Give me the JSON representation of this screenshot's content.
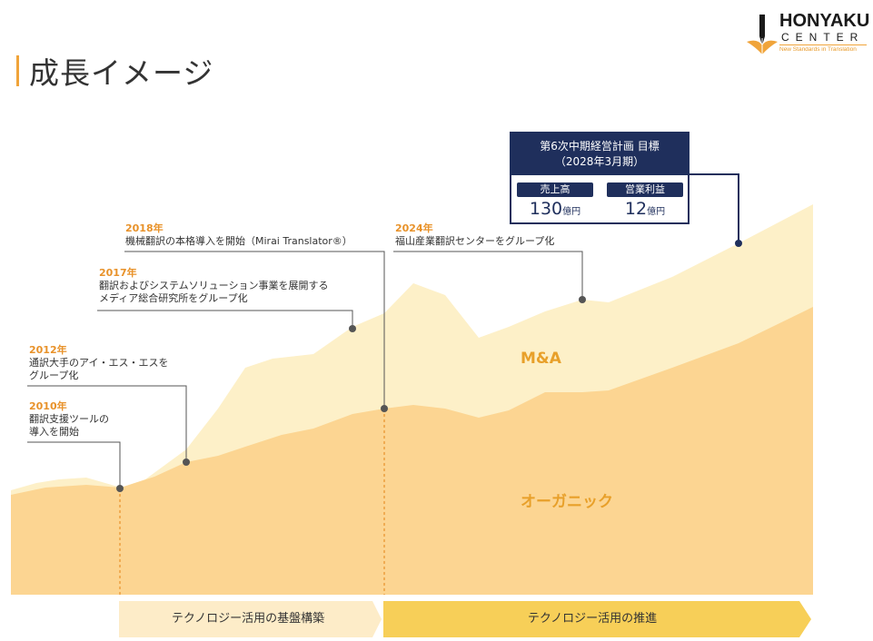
{
  "page": {
    "title": "成長イメージ"
  },
  "logo": {
    "name": "HONYAKU",
    "sub": "CENTER",
    "tagline": "New Standards in Translation"
  },
  "areas": {
    "ma_label": "M&A",
    "organic_label": "オーガニック"
  },
  "milestones": [
    {
      "year": "2010年",
      "lines": [
        "翻訳支援ツールの",
        "導入を開始"
      ]
    },
    {
      "year": "2012年",
      "lines": [
        "通訳大手のアイ・エス・エスを",
        "グループ化"
      ]
    },
    {
      "year": "2017年",
      "lines": [
        "翻訳およびシステムソリューション事業を展開する",
        "メディア総合研究所をグループ化"
      ]
    },
    {
      "year": "2018年",
      "lines": [
        "機械翻訳の本格導入を開始（Mirai Translator®）"
      ]
    },
    {
      "year": "2024年",
      "lines": [
        "福山産業翻訳センターをグループ化"
      ]
    }
  ],
  "target": {
    "title": "第6次中期経営計画 目標",
    "period": "（2028年3月期）",
    "metrics": [
      {
        "label": "売上高",
        "value": "130",
        "unit": "億円"
      },
      {
        "label": "営業利益",
        "value": "12",
        "unit": "億円"
      }
    ]
  },
  "phases": [
    {
      "label": "テクノロジー活用の基盤構築",
      "color": "#fdecc8"
    },
    {
      "label": "テクノロジー活用の推進",
      "color": "#f7cf58"
    }
  ],
  "colors": {
    "organic": "#fcd592",
    "ma": "#fdf0c8",
    "accent": "#e8922a",
    "navy": "#1f2f5c",
    "connector": "#555555"
  }
}
